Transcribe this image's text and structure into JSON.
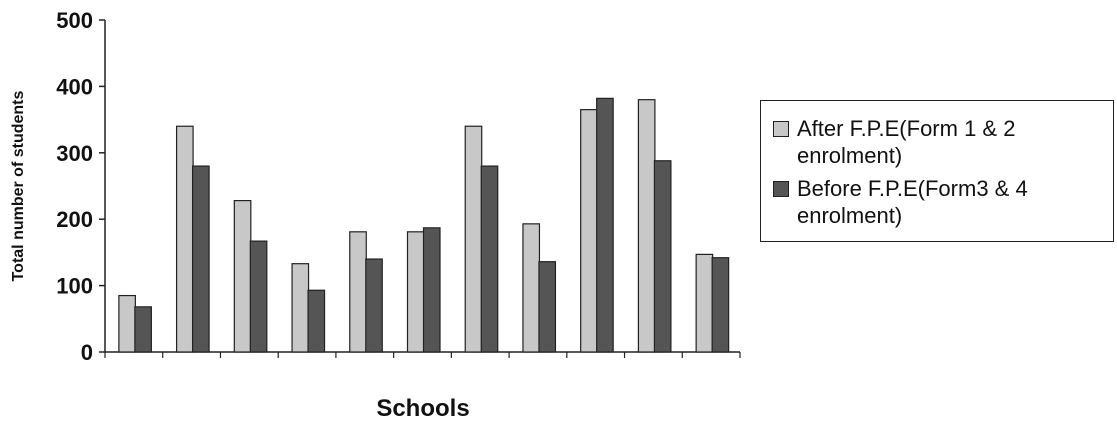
{
  "chart_data": {
    "type": "bar",
    "xlabel": "Schools",
    "ylabel": "Total number of students",
    "ylim": [
      0,
      500
    ],
    "yticks": [
      0,
      100,
      200,
      300,
      400,
      500
    ],
    "grid": false,
    "legend_position": "right",
    "categories": [
      "",
      "",
      "",
      "",
      "",
      "",
      "",
      "",
      "",
      "",
      ""
    ],
    "series": [
      {
        "name": "After F.P.E(Form 1 & 2 enrolment)",
        "color": "#c8c8c8",
        "values": [
          85,
          340,
          228,
          133,
          181,
          181,
          340,
          193,
          365,
          380,
          147
        ]
      },
      {
        "name": "Before F.P.E(Form3 & 4 enrolment)",
        "color": "#555555",
        "values": [
          68,
          280,
          167,
          93,
          140,
          187,
          280,
          136,
          382,
          288,
          142
        ]
      }
    ]
  }
}
